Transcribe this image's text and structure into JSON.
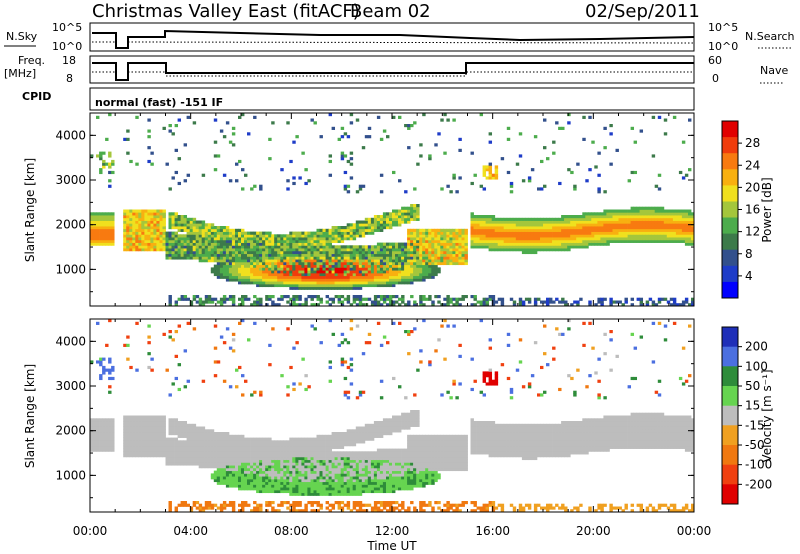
{
  "header": {
    "station": "Christmas Valley East (fitACF)",
    "beam": "Beam 02",
    "date": "02/Sep/2011"
  },
  "strips": {
    "nsky_label": "N.Sky",
    "nsky_ticks": [
      "10^5",
      "10^0"
    ],
    "nsearch_label": "N.Search",
    "nsearch_ticks": [
      "10^5",
      "10^0"
    ],
    "freq_label_1": "Freq.",
    "freq_label_2": "[MHz]",
    "freq_ticks": [
      "18",
      "8"
    ],
    "nave_label": "Nave",
    "nave_ticks": [
      "60",
      "0"
    ],
    "cpid_label": "CPID",
    "cpid_value": "normal (fast) -151 IF"
  },
  "chart_data": [
    {
      "type": "heatmap",
      "title": "",
      "ylabel": "Slant Range [km]",
      "xlabel": "",
      "ylim": [
        180,
        4500
      ],
      "yticks": [
        "1000",
        "2000",
        "3000",
        "4000"
      ],
      "colorbar": {
        "label": "Power [dB]",
        "ticks": [
          "4",
          "8",
          "12",
          "16",
          "20",
          "24",
          "28"
        ],
        "colors": [
          "#0000ff",
          "#1e3cc8",
          "#32508c",
          "#3c7a4a",
          "#4cac4c",
          "#a4c63c",
          "#f0e01e",
          "#f8b010",
          "#f87a10",
          "#f03c0c",
          "#e00000"
        ]
      }
    },
    {
      "type": "heatmap",
      "title": "",
      "ylabel": "Slant Range [km]",
      "xlabel": "Time UT",
      "ylim": [
        180,
        4500
      ],
      "yticks": [
        "1000",
        "2000",
        "3000",
        "4000"
      ],
      "xticks": [
        "00:00",
        "04:00",
        "08:00",
        "12:00",
        "16:00",
        "20:00",
        "00:00"
      ],
      "colorbar": {
        "label": "Velocity [m s⁻¹]",
        "ticks": [
          "200",
          "100",
          "50",
          "15",
          "-15",
          "-50",
          "-100",
          "-200"
        ],
        "colors": [
          "#1f2fb8",
          "#4b6fe0",
          "#2e8c3a",
          "#66d450",
          "#bdbdbd",
          "#f0a020",
          "#f07810",
          "#f04010",
          "#e00000"
        ]
      }
    }
  ]
}
